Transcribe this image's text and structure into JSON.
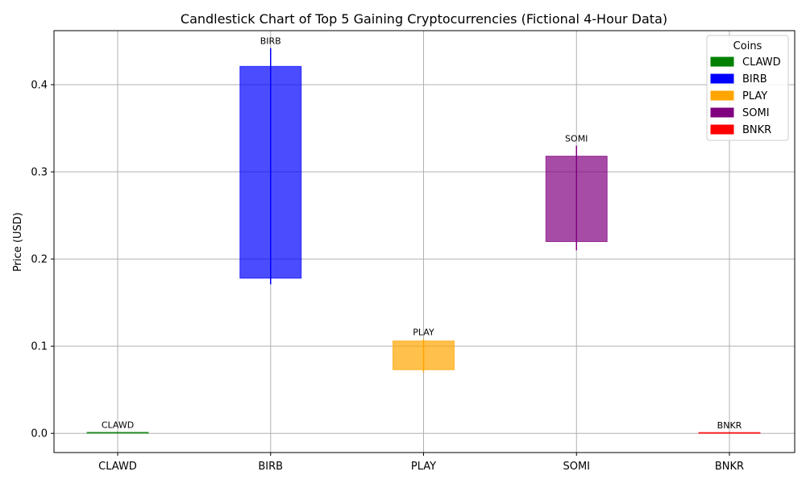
{
  "chart_data": {
    "type": "candlestick",
    "title": "Candlestick Chart of Top 5 Gaining Cryptocurrencies (Fictional 4-Hour Data)",
    "xlabel": "",
    "ylabel": "Price (USD)",
    "ylim": [
      -0.022,
      0.462
    ],
    "yticks": [
      0.0,
      0.1,
      0.2,
      0.3,
      0.4
    ],
    "ytick_labels": [
      "0.0",
      "0.1",
      "0.2",
      "0.3",
      "0.4"
    ],
    "grid": true,
    "legend": {
      "title": "Coins",
      "placement": "top-right",
      "entries": [
        "CLAWD",
        "BIRB",
        "PLAY",
        "SOMI",
        "BNKR"
      ]
    },
    "categories": [
      "CLAWD",
      "BIRB",
      "PLAY",
      "SOMI",
      "BNKR"
    ],
    "candles": [
      {
        "name": "CLAWD",
        "open": 0.0005,
        "close": 0.0012,
        "high": 0.0015,
        "low": 0.0003,
        "color": "#008000"
      },
      {
        "name": "BIRB",
        "open": 0.178,
        "close": 0.421,
        "high": 0.442,
        "low": 0.171,
        "color": "#0000ff"
      },
      {
        "name": "PLAY",
        "open": 0.073,
        "close": 0.106,
        "high": 0.108,
        "low": 0.07,
        "color": "#ffa500"
      },
      {
        "name": "SOMI",
        "open": 0.22,
        "close": 0.318,
        "high": 0.33,
        "low": 0.21,
        "color": "#800080"
      },
      {
        "name": "BNKR",
        "open": 0.0004,
        "close": 0.001,
        "high": 0.0012,
        "low": 0.0002,
        "color": "#ff0000"
      }
    ]
  }
}
